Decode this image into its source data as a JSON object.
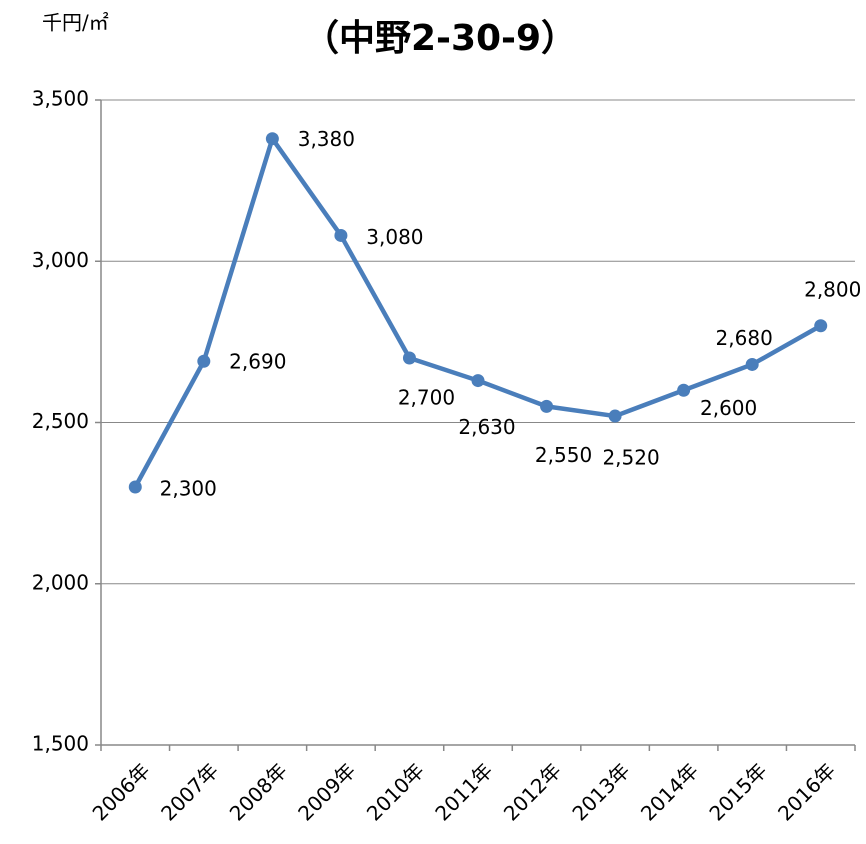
{
  "chart_data": {
    "type": "line",
    "title": "（中野2-30-9）",
    "y_label": "千円/㎡",
    "categories": [
      "2006年",
      "2007年",
      "2008年",
      "2009年",
      "2010年",
      "2011年",
      "2012年",
      "2013年",
      "2014年",
      "2015年",
      "2016年"
    ],
    "series": [
      {
        "color": "#4a7ebb",
        "values": [
          2300,
          2690,
          3380,
          3080,
          2700,
          2630,
          2550,
          2520,
          2600,
          2680,
          2800
        ],
        "value_labels": [
          "2,300",
          "2,690",
          "3,380",
          "3,080",
          "2,700",
          "2,630",
          "2,550",
          "2,520",
          "2,600",
          "2,680",
          "2,800"
        ]
      }
    ],
    "ylim": [
      1500,
      3500
    ],
    "yticks": [
      {
        "value": 1500,
        "label": "1,500"
      },
      {
        "value": 2000,
        "label": "2,000"
      },
      {
        "value": 2500,
        "label": "2,500"
      },
      {
        "value": 3000,
        "label": "3,000"
      },
      {
        "value": 3500,
        "label": "3,500"
      }
    ],
    "grid": true
  }
}
